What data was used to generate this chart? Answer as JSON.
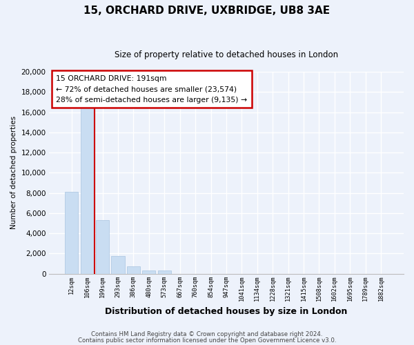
{
  "title": "15, ORCHARD DRIVE, UXBRIDGE, UB8 3AE",
  "subtitle": "Size of property relative to detached houses in London",
  "xlabel": "Distribution of detached houses by size in London",
  "ylabel": "Number of detached properties",
  "bar_labels": [
    "12sqm",
    "106sqm",
    "199sqm",
    "293sqm",
    "386sqm",
    "480sqm",
    "573sqm",
    "667sqm",
    "760sqm",
    "854sqm",
    "947sqm",
    "1041sqm",
    "1134sqm",
    "1228sqm",
    "1321sqm",
    "1415sqm",
    "1508sqm",
    "1602sqm",
    "1695sqm",
    "1789sqm",
    "1882sqm"
  ],
  "bar_values": [
    8100,
    16500,
    5300,
    1750,
    750,
    300,
    300,
    0,
    0,
    0,
    0,
    0,
    0,
    0,
    0,
    0,
    0,
    0,
    0,
    0,
    0
  ],
  "bar_color": "#c9ddf2",
  "bar_edge_color": "#a8c4e0",
  "annotation_title": "15 ORCHARD DRIVE: 191sqm",
  "annotation_line1": "← 72% of detached houses are smaller (23,574)",
  "annotation_line2": "28% of semi-detached houses are larger (9,135) →",
  "annotation_box_facecolor": "#ffffff",
  "annotation_box_edgecolor": "#cc0000",
  "property_line_color": "#cc0000",
  "property_line_x": 1.5,
  "ylim": [
    0,
    20000
  ],
  "yticks": [
    0,
    2000,
    4000,
    6000,
    8000,
    10000,
    12000,
    14000,
    16000,
    18000,
    20000
  ],
  "footnote1": "Contains HM Land Registry data © Crown copyright and database right 2024.",
  "footnote2": "Contains public sector information licensed under the Open Government Licence v3.0.",
  "background_color": "#edf2fb",
  "plot_background_color": "#edf2fb",
  "grid_color": "#ffffff"
}
